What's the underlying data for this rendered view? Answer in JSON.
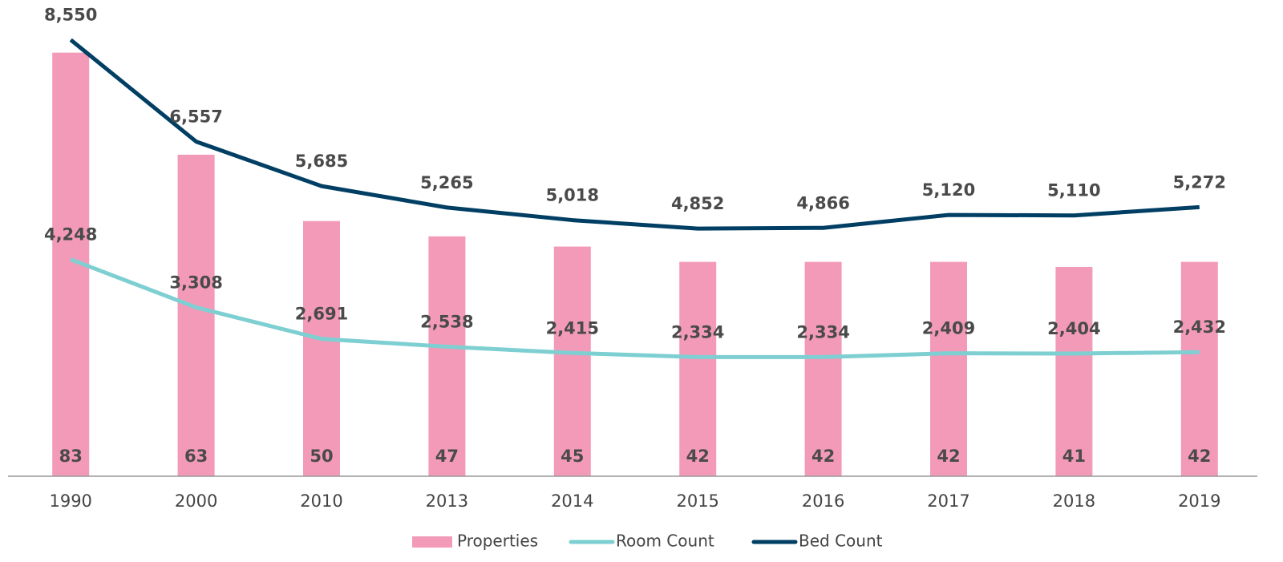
{
  "chart_data": {
    "type": "bar-line",
    "categories": [
      "1990",
      "2000",
      "2010",
      "2013",
      "2014",
      "2015",
      "2016",
      "2017",
      "2018",
      "2019"
    ],
    "series": [
      {
        "name": "Properties",
        "type": "bar",
        "axis": "y2",
        "color": "#f49ab9",
        "values": [
          83,
          63,
          50,
          47,
          45,
          42,
          42,
          42,
          41,
          42
        ]
      },
      {
        "name": "Room Count",
        "type": "line",
        "color": "#7ecfd1",
        "values": [
          4248,
          3308,
          2691,
          2538,
          2415,
          2334,
          2334,
          2409,
          2404,
          2432
        ],
        "value_labels": [
          "4,248",
          "3,308",
          "2,691",
          "2,538",
          "2,415",
          "2,334",
          "2,334",
          "2,409",
          "2,404",
          "2,432"
        ]
      },
      {
        "name": "Bed Count",
        "type": "line",
        "color": "#003f63",
        "values": [
          8550,
          6557,
          5685,
          5265,
          5018,
          4852,
          4866,
          5120,
          5110,
          5272
        ],
        "value_labels": [
          "8,550",
          "6,557",
          "5,685",
          "5,265",
          "5,018",
          "4,852",
          "4,866",
          "5,120",
          "5,110",
          "5,272"
        ]
      }
    ],
    "ylim": [
      0,
      9300
    ],
    "y2lim": [
      0,
      93
    ]
  }
}
